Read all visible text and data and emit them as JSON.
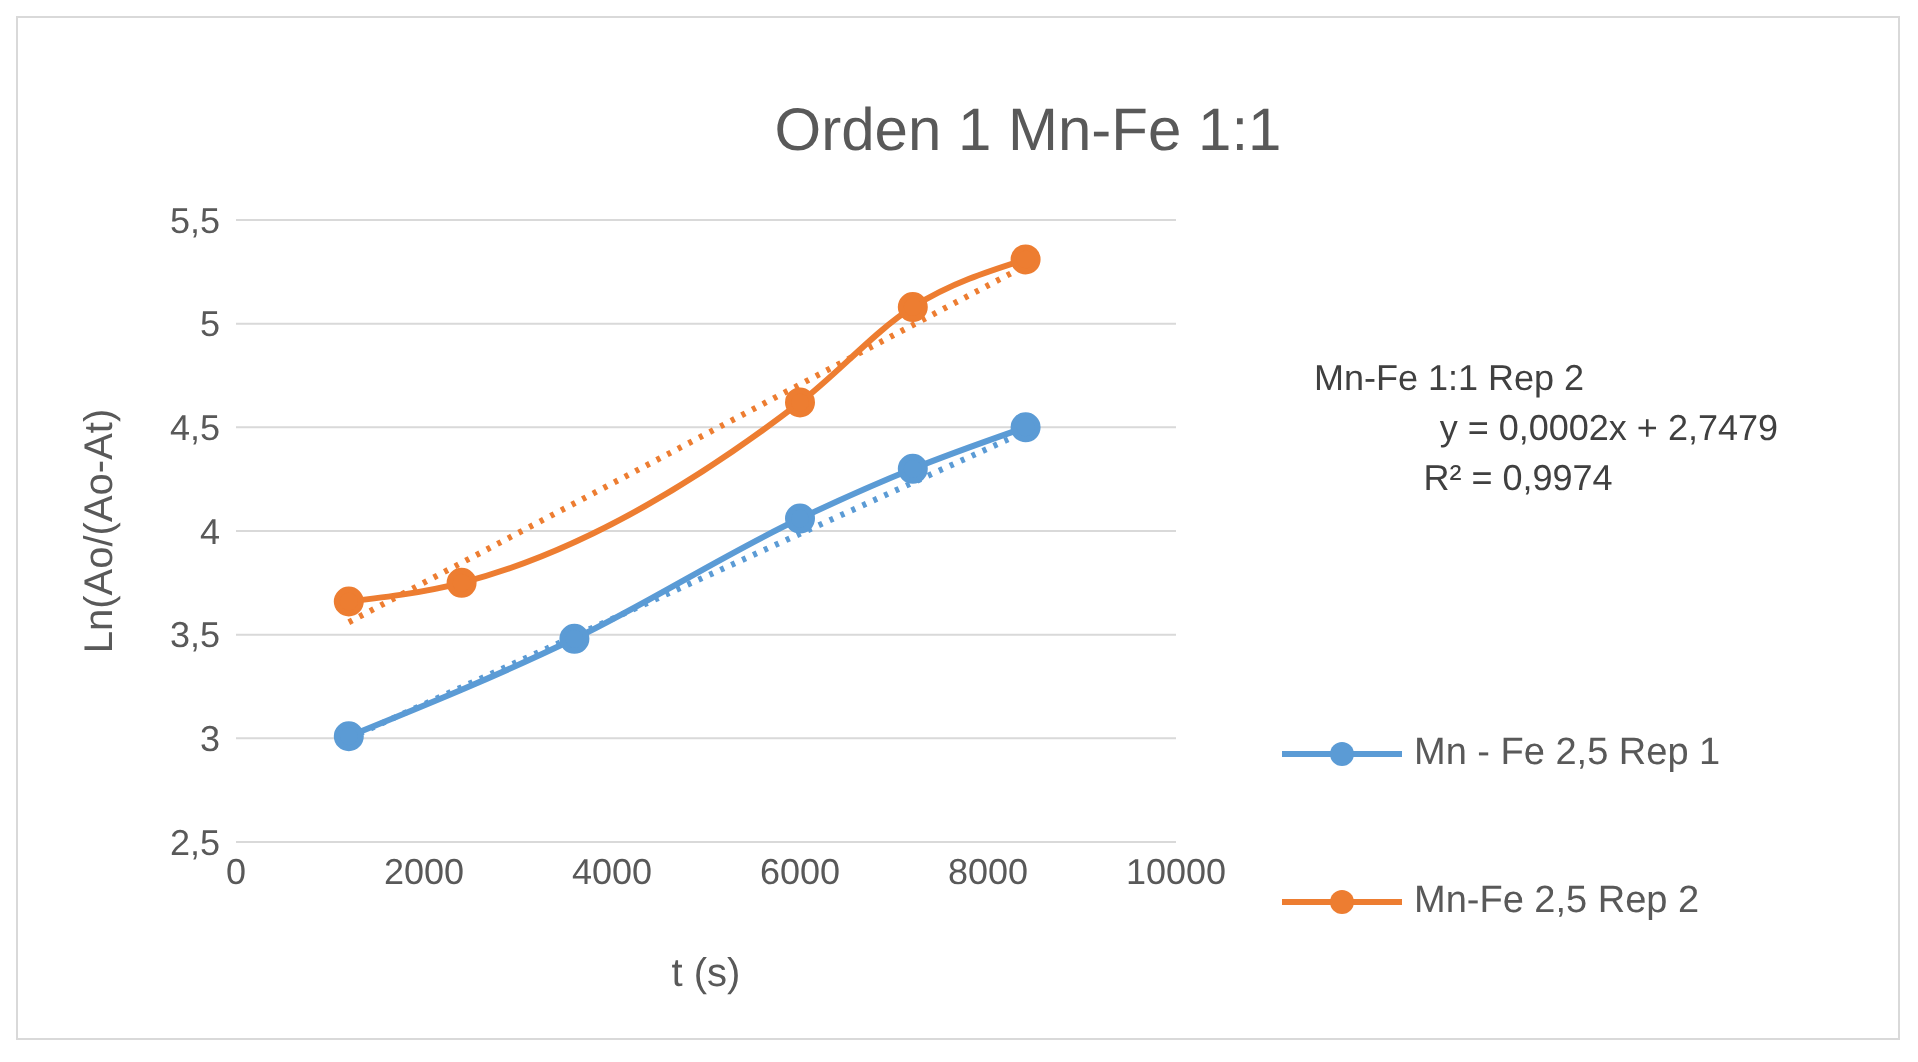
{
  "chart_data": {
    "type": "line",
    "title": "Orden 1 Mn-Fe 1:1",
    "xlabel": "t (s)",
    "ylabel": "Ln(Ao/(Ao-At)",
    "xlim": [
      0,
      10000
    ],
    "xticks": [
      0,
      2000,
      4000,
      6000,
      8000,
      10000
    ],
    "ylim": [
      2.5,
      5.5
    ],
    "yticks": [
      {
        "value": 2.5,
        "label": "2,5"
      },
      {
        "value": 3,
        "label": "3"
      },
      {
        "value": 3.5,
        "label": "3,5"
      },
      {
        "value": 4,
        "label": "4"
      },
      {
        "value": 4.5,
        "label": "4,5"
      },
      {
        "value": 5,
        "label": "5"
      },
      {
        "value": 5.5,
        "label": "5,5"
      }
    ],
    "grid": "y",
    "legend": "right",
    "marker": "circle",
    "annotations": [
      "Mn-Fe 1:1 Rep 2",
      "y = 0,0002x + 2,7479",
      "R² = 0,9974"
    ],
    "series": [
      {
        "name": "Mn - Fe 2,5 Rep 1",
        "color": "#5b9bd5",
        "x": [
          1200,
          3600,
          6000,
          7200,
          8400
        ],
        "values": [
          3.01,
          3.48,
          4.06,
          4.3,
          4.5
        ]
      },
      {
        "name": "Mn-Fe 2,5 Rep 2",
        "color": "#ed7d31",
        "x": [
          1200,
          2400,
          6000,
          7200,
          8400
        ],
        "values": [
          3.66,
          3.75,
          4.62,
          5.08,
          5.31
        ]
      },
      {
        "color": "#5b9bd5",
        "x": [
          1200,
          8400
        ],
        "values": [
          3.0,
          4.48
        ],
        "marker": "none",
        "line_style": "dotted"
      },
      {
        "color": "#ed7d31",
        "x": [
          1200,
          8400
        ],
        "values": [
          3.56,
          5.28
        ],
        "marker": "none",
        "line_style": "dotted"
      }
    ]
  }
}
